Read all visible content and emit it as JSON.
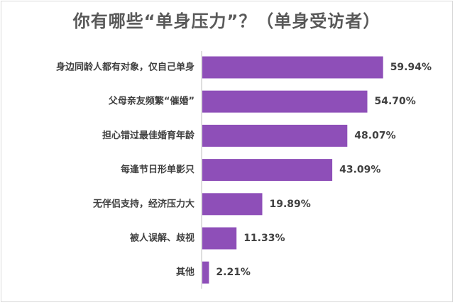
{
  "chart_data": {
    "type": "bar",
    "orientation": "horizontal",
    "title": "你有哪些“单身压力”？（单身受访者）",
    "categories": [
      "身边同龄人都有对象，仅自己单身",
      "父母亲友频繁“催婚”",
      "担心错过最佳婚育年龄",
      "每逢节日形单影只",
      "无伴侣支持，经济压力大",
      "被人误解、歧视",
      "其他"
    ],
    "values": [
      59.94,
      54.7,
      48.07,
      43.09,
      19.89,
      11.33,
      2.21
    ],
    "value_labels": [
      "59.94%",
      "54.70%",
      "48.07%",
      "43.09%",
      "19.89%",
      "11.33%",
      "2.21%"
    ],
    "xlim": [
      0,
      60
    ],
    "grid": false,
    "bar_color": "#8e4fb8"
  }
}
